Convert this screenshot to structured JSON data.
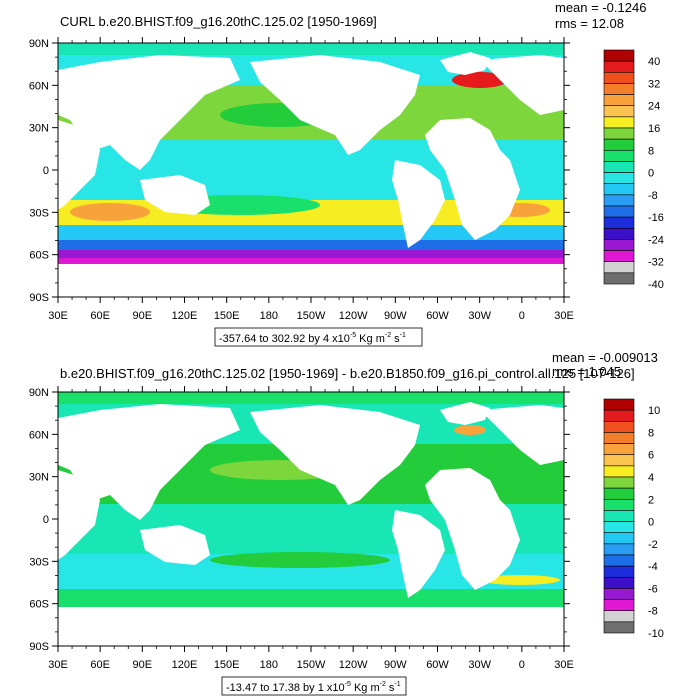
{
  "chart_data": [
    {
      "type": "heatmap",
      "title": "CURL b.e20.BHIST.f09_g16.20thC.125.02 [1950-1969]",
      "stats": {
        "mean": "mean = -0.1246",
        "rms": "rms = 12.08"
      },
      "range_note": "-357.64 to 302.92 by 4 x10",
      "range_exp": "-5",
      "range_unit": " Kg m",
      "range_unit_exp1": "-2",
      "range_unit_s": " s",
      "range_unit_exp2": "-1",
      "y_ticks": [
        "90N",
        "60N",
        "30N",
        "0",
        "30S",
        "60S",
        "90S"
      ],
      "x_ticks": [
        "30E",
        "60E",
        "90E",
        "120E",
        "150E",
        "180",
        "150W",
        "120W",
        "90W",
        "60W",
        "30W",
        "0",
        "30E"
      ],
      "xlim": [
        30,
        390
      ],
      "ylim": [
        -90,
        90
      ],
      "colorbar_labels": [
        "40",
        "32",
        "24",
        "16",
        "8",
        "0",
        "-8",
        "-16",
        "-24",
        "-32",
        "-40"
      ],
      "colorbar_colors": [
        "#b00000",
        "#e41a1c",
        "#f0501e",
        "#f47f2a",
        "#f8a23c",
        "#fbc450",
        "#f6ee23",
        "#7dd63c",
        "#22cc3a",
        "#18e06a",
        "#18e6b4",
        "#28e6e6",
        "#24c8f4",
        "#2a9df2",
        "#1e6ee8",
        "#1c2ddc",
        "#3c10c8",
        "#9a18d2",
        "#e018d4",
        "#d2d2d2",
        "#6e6e6e"
      ]
    },
    {
      "type": "heatmap",
      "title": "b.e20.BHIST.f09_g16.20thC.125.02 [1950-1969] - b.e20.B1850.f09_g16.pi_control.all.125 [107-126]",
      "stats": {
        "mean": "mean = -0.009013",
        "rms": "rms = 1.045"
      },
      "range_note": "-13.47 to 17.38 by 1 x10",
      "range_exp": "-5",
      "range_unit": " Kg m",
      "range_unit_exp1": "-2",
      "range_unit_s": " s",
      "range_unit_exp2": "-1",
      "y_ticks": [
        "90N",
        "60N",
        "30N",
        "0",
        "30S",
        "60S",
        "90S"
      ],
      "x_ticks": [
        "30E",
        "60E",
        "90E",
        "120E",
        "150E",
        "180",
        "150W",
        "120W",
        "90W",
        "60W",
        "30W",
        "0",
        "30E"
      ],
      "xlim": [
        30,
        390
      ],
      "ylim": [
        -90,
        90
      ],
      "colorbar_labels": [
        "10",
        "8",
        "6",
        "4",
        "2",
        "0",
        "-2",
        "-4",
        "-6",
        "-8",
        "-10"
      ],
      "colorbar_colors": [
        "#b00000",
        "#e41a1c",
        "#f0501e",
        "#f47f2a",
        "#f8a23c",
        "#fbc450",
        "#f6ee23",
        "#7dd63c",
        "#22cc3a",
        "#18e06a",
        "#18e6b4",
        "#28e6e6",
        "#24c8f4",
        "#2a9df2",
        "#1e6ee8",
        "#1c2ddc",
        "#3c10c8",
        "#9a18d2",
        "#e018d4",
        "#d2d2d2",
        "#6e6e6e"
      ]
    }
  ]
}
